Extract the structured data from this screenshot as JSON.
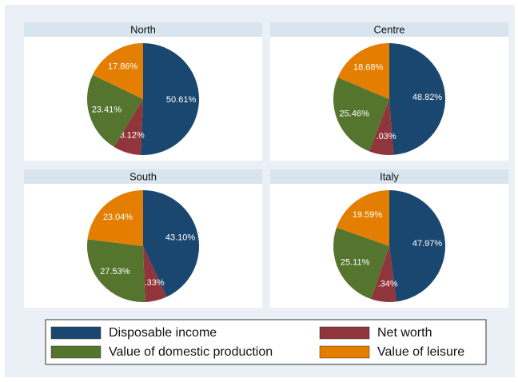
{
  "chart_data": [
    {
      "type": "pie",
      "title": "North",
      "values": [
        50.61,
        8.12,
        23.41,
        17.86
      ],
      "value_labels": [
        "50.61%",
        "8.12%",
        "23.41%",
        "17.86%"
      ]
    },
    {
      "type": "pie",
      "title": "Centre",
      "values": [
        48.82,
        7.03,
        25.46,
        18.68
      ],
      "value_labels": [
        "48.82%",
        "7.03%",
        "25.46%",
        "18.68%"
      ]
    },
    {
      "type": "pie",
      "title": "South",
      "values": [
        43.1,
        6.33,
        27.53,
        23.04
      ],
      "value_labels": [
        "43.10%",
        "6.33%",
        "27.53%",
        "23.04%"
      ]
    },
    {
      "type": "pie",
      "title": "Italy",
      "values": [
        47.97,
        7.34,
        25.11,
        19.59
      ],
      "value_labels": [
        "47.97%",
        "7.34%",
        "25.11%",
        "19.59%"
      ]
    }
  ],
  "legend": {
    "labels": [
      "Disposable income",
      "Net worth",
      "Value of domestic production",
      "Value of leisure"
    ],
    "colors": [
      "#1a476f",
      "#90353b",
      "#55752f",
      "#e37e00"
    ]
  }
}
